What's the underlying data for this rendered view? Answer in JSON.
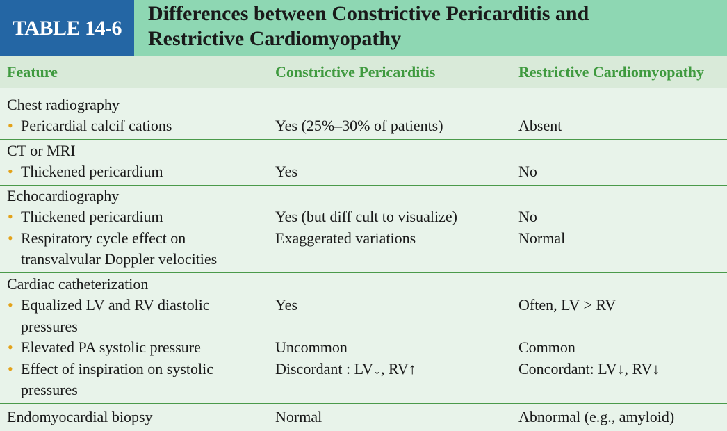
{
  "table": {
    "label": "TABLE 14-6",
    "title_line1": "Differences between Constrictive Pericarditis and",
    "title_line2": "Restrictive Cardiomyopathy",
    "columns": [
      "Feature",
      "Constrictive Pericarditis",
      "Restrictive Cardiomyopathy"
    ],
    "bullet": "•",
    "sections": [
      {
        "heading": "Chest radiography",
        "items": [
          {
            "feature": [
              "Pericardial calcif cations"
            ],
            "constrictive": "Yes (25%–30% of patients)",
            "restrictive": "Absent"
          }
        ]
      },
      {
        "heading": "CT or MRI",
        "items": [
          {
            "feature": [
              "Thickened pericardium"
            ],
            "constrictive": "Yes",
            "restrictive": "No"
          }
        ]
      },
      {
        "heading": "Echocardiography",
        "items": [
          {
            "feature": [
              "Thickened pericardium"
            ],
            "constrictive": "Yes (but diff cult to visualize)",
            "restrictive": "No"
          },
          {
            "feature": [
              "Respiratory cycle effect on",
              "transvalvular Doppler velocities"
            ],
            "constrictive": "Exaggerated variations",
            "restrictive": "Normal"
          }
        ]
      },
      {
        "heading": "Cardiac catheterization",
        "items": [
          {
            "feature": [
              "Equalized LV and RV diastolic",
              "pressures"
            ],
            "constrictive": "Yes",
            "restrictive": "Often, LV > RV"
          },
          {
            "feature": [
              "Elevated PA systolic pressure"
            ],
            "constrictive": "Uncommon",
            "restrictive": "Common"
          },
          {
            "feature": [
              "Effect of inspiration on systolic",
              "pressures"
            ],
            "constrictive": "Discordant : LV↓, RV↑",
            "restrictive": "Concordant: LV↓, RV↓"
          }
        ]
      },
      {
        "heading": "Endomyocardial biopsy",
        "constrictive": "Normal",
        "restrictive": "Abnormal (e.g., amyloid)",
        "items": []
      }
    ]
  }
}
